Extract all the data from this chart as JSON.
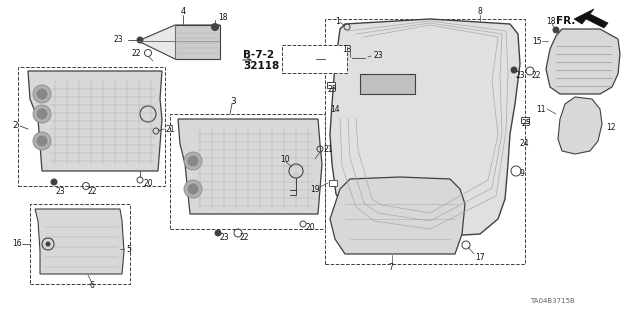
{
  "bg_color": "#ffffff",
  "line_color": "#404040",
  "text_color": "#111111",
  "diagram_code": "TA04B3715B",
  "figsize": [
    6.4,
    3.19
  ],
  "dpi": 100
}
